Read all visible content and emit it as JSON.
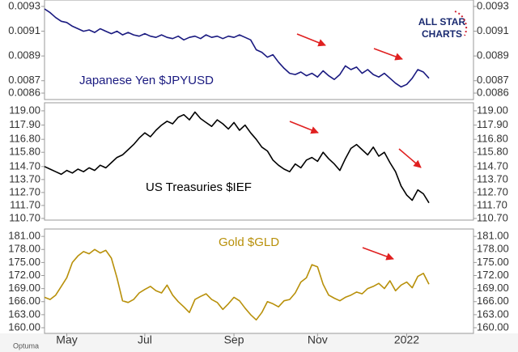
{
  "chart_data": [
    {
      "type": "line",
      "annotation": "Japanese Yen $JPYUSD",
      "color": "#1a1a80",
      "values": [
        0.00928,
        0.00925,
        0.00921,
        0.00918,
        0.00917,
        0.00914,
        0.00912,
        0.0091,
        0.00911,
        0.00909,
        0.00912,
        0.0091,
        0.00908,
        0.0091,
        0.00907,
        0.00909,
        0.00907,
        0.00906,
        0.00908,
        0.00906,
        0.00905,
        0.00907,
        0.00905,
        0.00904,
        0.00906,
        0.00903,
        0.00905,
        0.00906,
        0.00904,
        0.00907,
        0.00905,
        0.00906,
        0.00904,
        0.00906,
        0.00905,
        0.00907,
        0.00905,
        0.00903,
        0.00895,
        0.00893,
        0.00889,
        0.00891,
        0.00885,
        0.0088,
        0.00876,
        0.00875,
        0.00877,
        0.00874,
        0.00876,
        0.00873,
        0.00878,
        0.00874,
        0.00871,
        0.00875,
        0.00882,
        0.00879,
        0.00881,
        0.00876,
        0.00879,
        0.00875,
        0.00873,
        0.00876,
        0.00872,
        0.00868,
        0.00865,
        0.00867,
        0.00872,
        0.00879,
        0.00877,
        0.00872
      ],
      "ylim": [
        0.008548,
        0.009352
      ],
      "yticks": [
        0.0093,
        0.0091,
        0.0089,
        0.0087,
        0.0086
      ]
    },
    {
      "type": "line",
      "annotation": "US Treasuries $IEF",
      "color": "#000000",
      "values": [
        114.7,
        114.5,
        114.3,
        114.1,
        114.4,
        114.2,
        114.5,
        114.3,
        114.6,
        114.4,
        114.8,
        114.6,
        115.0,
        115.4,
        115.6,
        116.0,
        116.4,
        116.9,
        117.3,
        117.0,
        117.5,
        117.9,
        118.2,
        118.0,
        118.5,
        118.7,
        118.3,
        118.9,
        118.4,
        118.1,
        117.8,
        118.3,
        118.0,
        117.6,
        118.1,
        117.5,
        117.9,
        117.3,
        116.8,
        116.2,
        115.9,
        115.2,
        114.8,
        114.5,
        114.3,
        114.9,
        114.6,
        115.2,
        115.4,
        115.1,
        115.8,
        115.3,
        114.9,
        114.4,
        115.3,
        116.1,
        116.4,
        116.0,
        115.6,
        116.2,
        115.5,
        115.8,
        115.0,
        114.3,
        113.2,
        112.5,
        112.1,
        112.9,
        112.6,
        111.9
      ],
      "ylim": [
        110.57,
        119.62
      ],
      "yticks": [
        {
          "value": 119,
          "label": "119.00"
        },
        {
          "value": 117.9,
          "label": "117.90"
        },
        {
          "value": 116.8,
          "label": "116.80"
        },
        {
          "value": 115.8,
          "label": "115.80"
        },
        {
          "value": 114.7,
          "label": "114.70"
        },
        {
          "value": 113.7,
          "label": "113.70"
        },
        {
          "value": 112.7,
          "label": "112.70"
        },
        {
          "value": 111.7,
          "label": "111.70"
        },
        {
          "value": 110.7,
          "label": "110.70"
        }
      ]
    },
    {
      "type": "line",
      "annotation": "Gold $GLD",
      "color": "#b8900a",
      "values": [
        167.0,
        166.5,
        167.5,
        169.5,
        171.5,
        175.0,
        176.5,
        177.5,
        177.0,
        178.0,
        177.2,
        177.8,
        176.0,
        171.5,
        166.2,
        165.8,
        166.5,
        168.0,
        168.8,
        169.5,
        168.5,
        168.0,
        169.8,
        167.5,
        166.0,
        164.8,
        163.5,
        166.5,
        167.2,
        167.8,
        166.5,
        165.8,
        164.2,
        165.5,
        167.0,
        166.2,
        164.5,
        163.0,
        161.8,
        163.5,
        166.0,
        165.5,
        164.8,
        166.2,
        166.5,
        168.0,
        170.5,
        171.5,
        174.5,
        174.0,
        170.0,
        167.5,
        166.8,
        166.2,
        167.0,
        167.5,
        168.2,
        167.8,
        169.0,
        169.5,
        170.2,
        169.0,
        170.8,
        168.5,
        169.8,
        170.5,
        169.2,
        171.8,
        172.5,
        170.0
      ],
      "categories": [
        null,
        null,
        null,
        null,
        "May",
        null,
        null,
        null,
        null,
        null,
        null,
        null,
        null,
        null,
        null,
        null,
        null,
        null,
        "Jul",
        null,
        null,
        null,
        null,
        null,
        null,
        null,
        null,
        null,
        null,
        null,
        null,
        null,
        null,
        null,
        "Sep",
        null,
        null,
        null,
        null,
        null,
        null,
        null,
        null,
        null,
        null,
        null,
        null,
        null,
        null,
        "Nov",
        null,
        null,
        null,
        null,
        null,
        null,
        null,
        null,
        null,
        null,
        null,
        null,
        null,
        null,
        null,
        "2022",
        null,
        null,
        null,
        null
      ],
      "ylim": [
        158.7,
        182.7
      ],
      "yticks": [
        {
          "value": 181,
          "label": "181.00"
        },
        {
          "value": 178,
          "label": "178.00"
        },
        {
          "value": 175,
          "label": "175.00"
        },
        {
          "value": 172,
          "label": "172.00"
        },
        {
          "value": 169,
          "label": "169.00"
        },
        {
          "value": 166,
          "label": "166.00"
        },
        {
          "value": 163,
          "label": "163.00"
        },
        {
          "value": 160,
          "label": "160.00"
        }
      ]
    }
  ],
  "logo": {
    "line1": "ALL STAR",
    "line2": "CHARTS"
  },
  "footer": "Optuma"
}
